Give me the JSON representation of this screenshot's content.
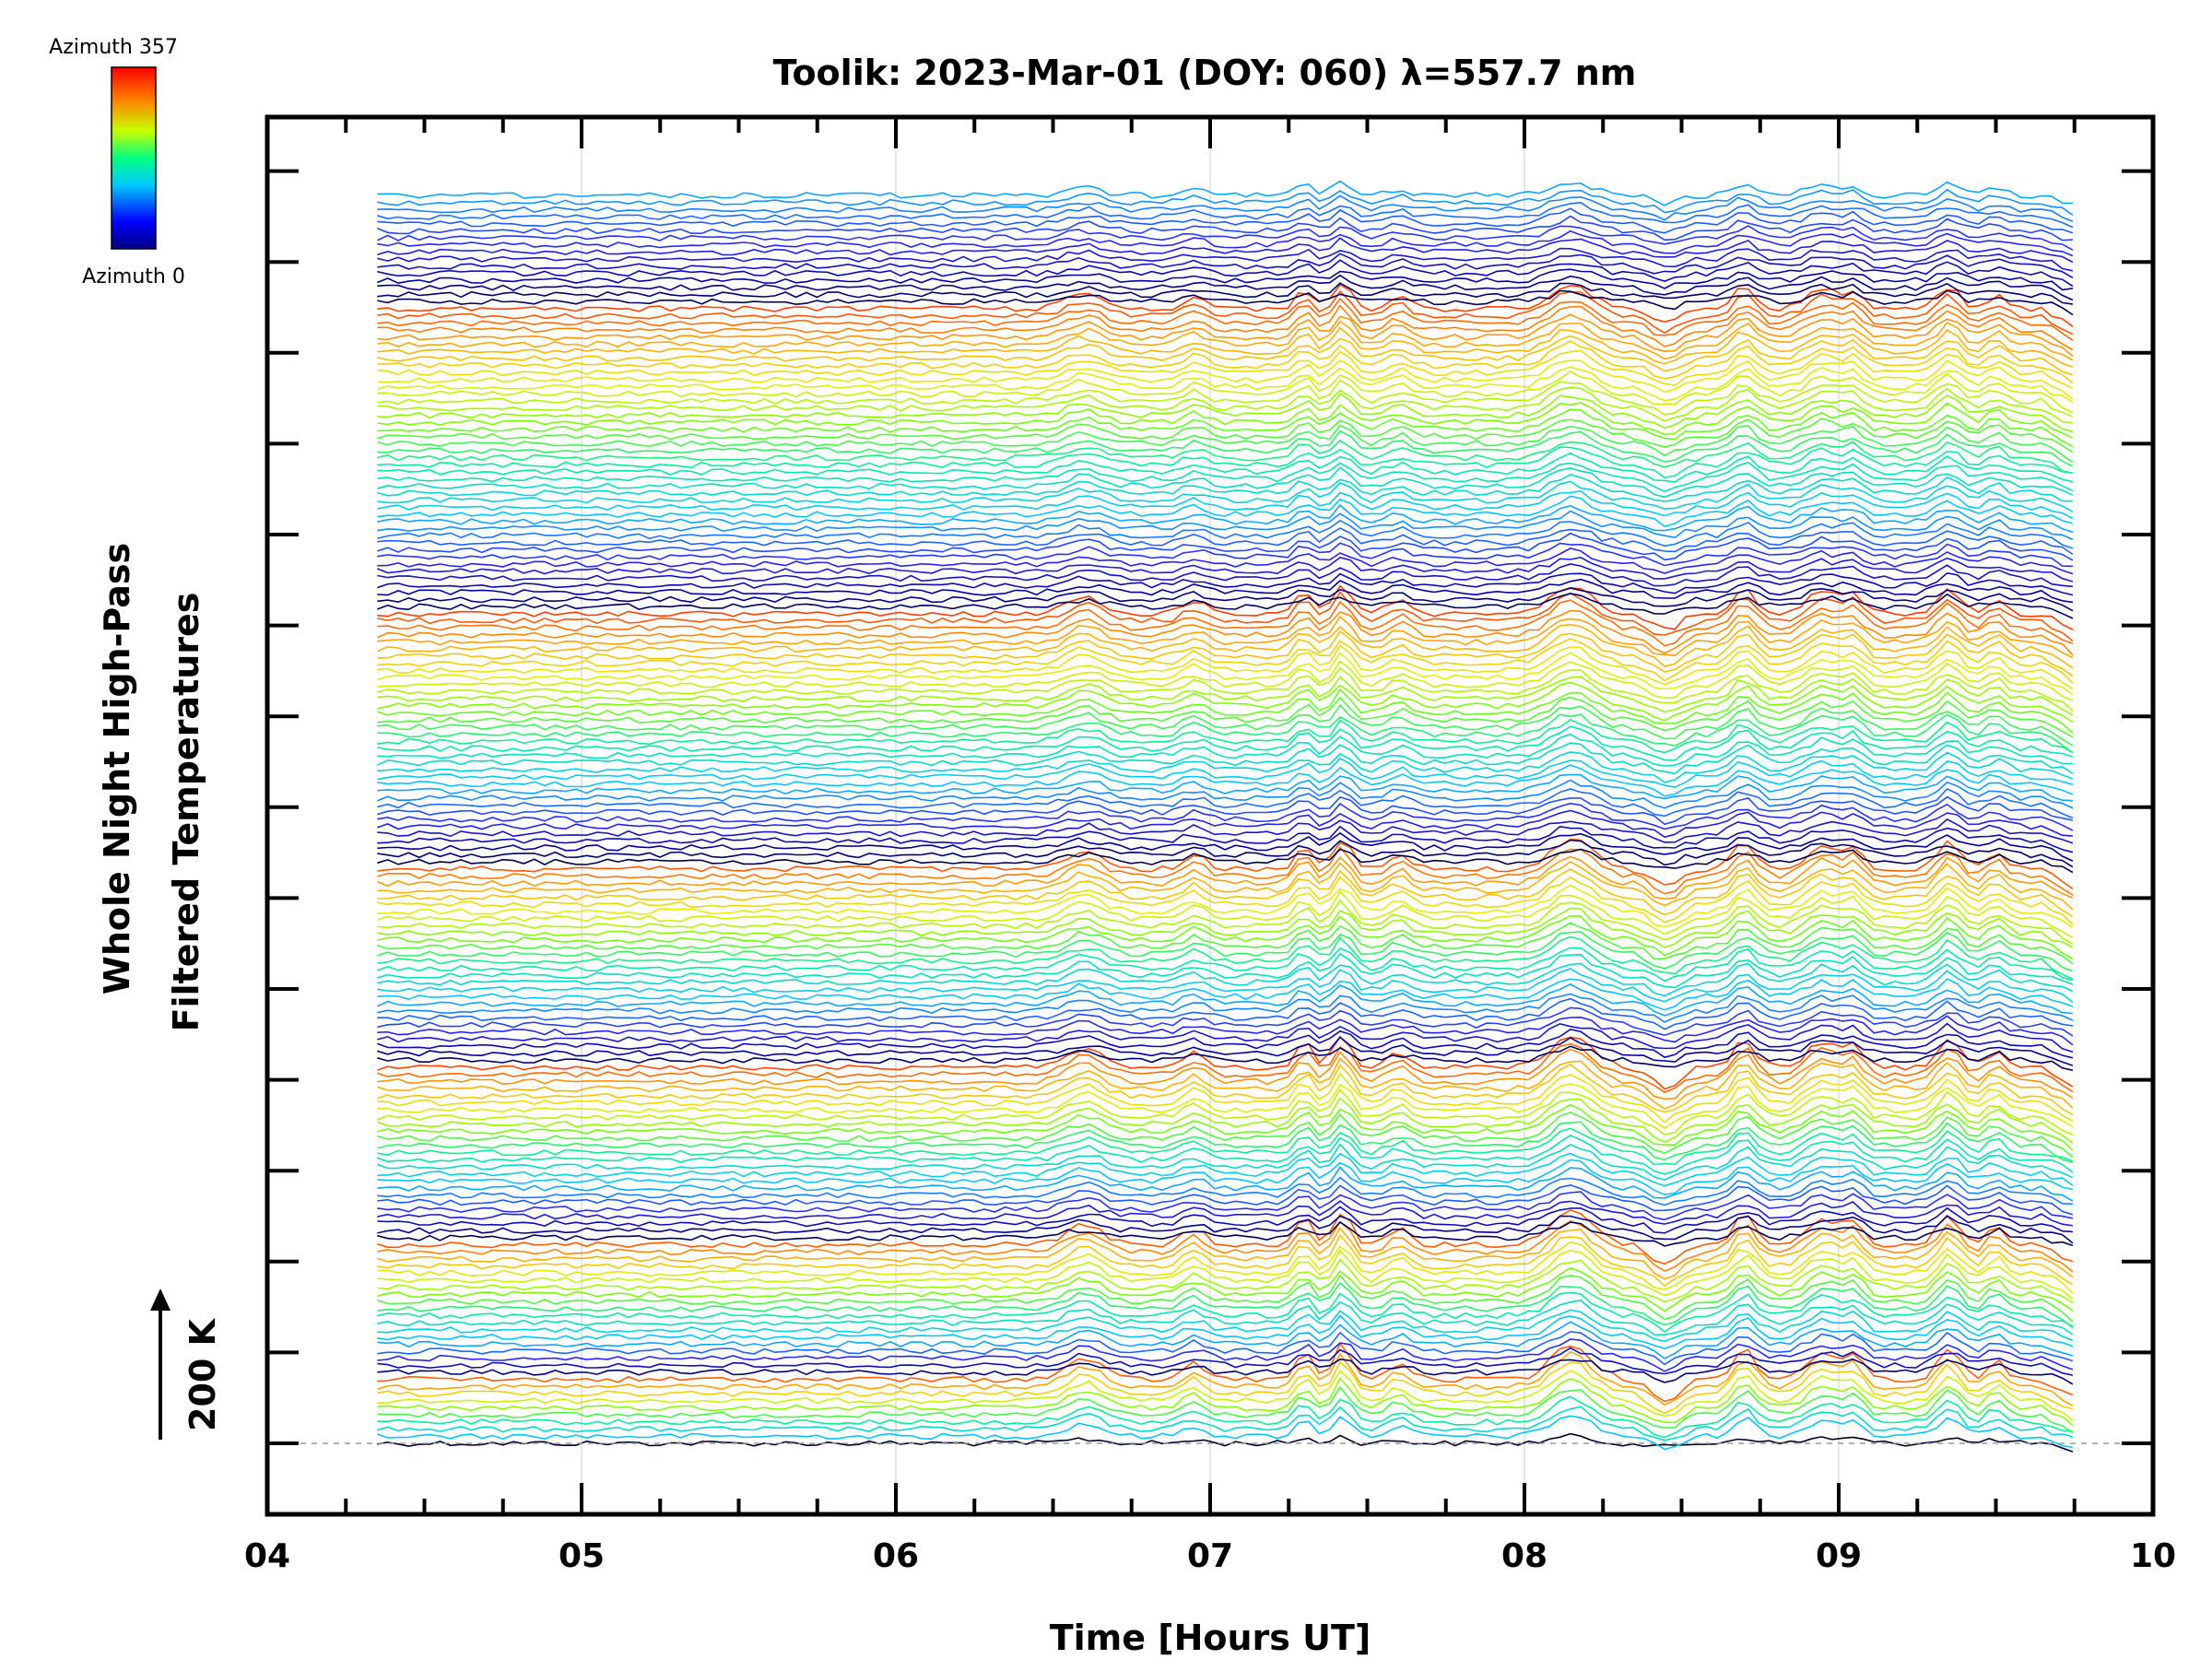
{
  "chart_data": {
    "type": "line",
    "title": "Toolik: 2023-Mar-01 (DOY: 060) λ=557.7 nm",
    "xlabel": "Time [Hours UT]",
    "ylabel_line1": "Whole Night High-Pass",
    "ylabel_line2": "Filtered Temperatures",
    "x_range": [
      4,
      10
    ],
    "x_tick_labels": [
      "04",
      "05",
      "06",
      "07",
      "08",
      "09",
      "10"
    ],
    "data_x_range": [
      4.35,
      9.75
    ],
    "scale_bar": {
      "value": 200,
      "unit": "K",
      "label": "200 K"
    },
    "grid": true,
    "colorbar": {
      "top_label": "Azimuth 357",
      "bottom_label": "Azimuth 0",
      "colors": [
        "#000080",
        "#0000ff",
        "#00ffff",
        "#00ff00",
        "#ffff00",
        "#ff8000",
        "#ff0000"
      ]
    },
    "series_description": "Stacked high-pass filtered temperature traces, one per azimuth, colored by azimuth (0-357); bundle of ~190 traces grouped in 6 rings",
    "rings": 6,
    "traces_per_ring_max": 48
  }
}
